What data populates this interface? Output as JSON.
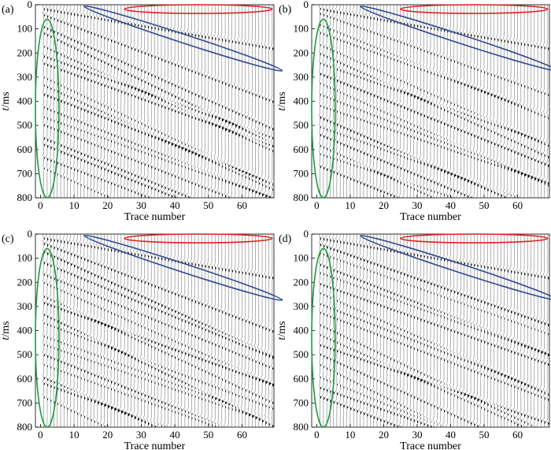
{
  "figure": {
    "x_label": "Trace number",
    "y_label_italic": "t",
    "y_label_unit": "/ms"
  },
  "chart_data": [
    {
      "type": "seismic-wiggle",
      "panel_label": "(a)",
      "xlabel": "Trace number",
      "ylabel": "t/ms",
      "x_ticks": [
        0,
        10,
        20,
        30,
        40,
        50,
        60
      ],
      "y_ticks": [
        0,
        100,
        200,
        300,
        400,
        500,
        600,
        700,
        800
      ],
      "xlim": [
        -1.5,
        69.5
      ],
      "ylim": [
        0,
        800
      ],
      "y_inverted": true,
      "trace_count": 69,
      "annotations": [
        {
          "shape": "ellipse",
          "color": "#e02020",
          "center_trace": 47,
          "center_t": 18,
          "half_width_traces": 22,
          "half_height_t": 18,
          "tilt_deg": 0
        },
        {
          "shape": "ellipse",
          "color": "#2e4790",
          "center_trace": 42.5,
          "center_t": 140,
          "half_width_traces": 31,
          "half_height_t": 18,
          "tilt_deg": 18
        },
        {
          "shape": "ellipse",
          "color": "#1a9a3a",
          "center_trace": 2,
          "center_t": 430,
          "half_width_traces": 3.5,
          "half_height_t": 370,
          "tilt_deg": 0
        }
      ]
    },
    {
      "type": "seismic-wiggle",
      "panel_label": "(b)",
      "xlabel": "Trace number",
      "ylabel": "t/ms",
      "x_ticks": [
        0,
        10,
        20,
        30,
        40,
        50,
        60
      ],
      "y_ticks": [
        0,
        100,
        200,
        300,
        400,
        500,
        600,
        700,
        800
      ],
      "xlim": [
        -1.5,
        69.5
      ],
      "ylim": [
        0,
        800
      ],
      "y_inverted": true,
      "trace_count": 69,
      "annotations": [
        {
          "shape": "ellipse",
          "color": "#e02020",
          "center_trace": 47,
          "center_t": 18,
          "half_width_traces": 22,
          "half_height_t": 18,
          "tilt_deg": 0
        },
        {
          "shape": "ellipse",
          "color": "#2e4790",
          "center_trace": 42.5,
          "center_t": 140,
          "half_width_traces": 31,
          "half_height_t": 18,
          "tilt_deg": 18
        },
        {
          "shape": "ellipse",
          "color": "#1a9a3a",
          "center_trace": 2,
          "center_t": 430,
          "half_width_traces": 3.5,
          "half_height_t": 370,
          "tilt_deg": 0
        }
      ]
    },
    {
      "type": "seismic-wiggle",
      "panel_label": "(c)",
      "xlabel": "Trace number",
      "ylabel": "t/ms",
      "x_ticks": [
        0,
        10,
        20,
        30,
        40,
        50,
        60
      ],
      "y_ticks": [
        0,
        100,
        200,
        300,
        400,
        500,
        600,
        700,
        800
      ],
      "xlim": [
        -1.5,
        69.5
      ],
      "ylim": [
        0,
        800
      ],
      "y_inverted": true,
      "trace_count": 69,
      "annotations": [
        {
          "shape": "ellipse",
          "color": "#e02020",
          "center_trace": 47,
          "center_t": 18,
          "half_width_traces": 22,
          "half_height_t": 18,
          "tilt_deg": 0
        },
        {
          "shape": "ellipse",
          "color": "#2e4790",
          "center_trace": 42.5,
          "center_t": 140,
          "half_width_traces": 31,
          "half_height_t": 18,
          "tilt_deg": 18
        },
        {
          "shape": "ellipse",
          "color": "#1a9a3a",
          "center_trace": 2,
          "center_t": 430,
          "half_width_traces": 3.5,
          "half_height_t": 370,
          "tilt_deg": 0
        }
      ]
    },
    {
      "type": "seismic-wiggle",
      "panel_label": "(d)",
      "xlabel": "Trace number",
      "ylabel": "t/ms",
      "x_ticks": [
        0,
        10,
        20,
        30,
        40,
        50,
        60
      ],
      "y_ticks": [
        0,
        100,
        200,
        300,
        400,
        500,
        600,
        700,
        800
      ],
      "xlim": [
        -1.5,
        69.5
      ],
      "ylim": [
        0,
        800
      ],
      "y_inverted": true,
      "trace_count": 69,
      "annotations": [
        {
          "shape": "ellipse",
          "color": "#e02020",
          "center_trace": 47,
          "center_t": 18,
          "half_width_traces": 22,
          "half_height_t": 18,
          "tilt_deg": 0
        },
        {
          "shape": "ellipse",
          "color": "#2e4790",
          "center_trace": 42.5,
          "center_t": 140,
          "half_width_traces": 31,
          "half_height_t": 18,
          "tilt_deg": 18
        },
        {
          "shape": "ellipse",
          "color": "#1a9a3a",
          "center_trace": 2,
          "center_t": 430,
          "half_width_traces": 3.5,
          "half_height_t": 370,
          "tilt_deg": 0
        }
      ]
    }
  ]
}
